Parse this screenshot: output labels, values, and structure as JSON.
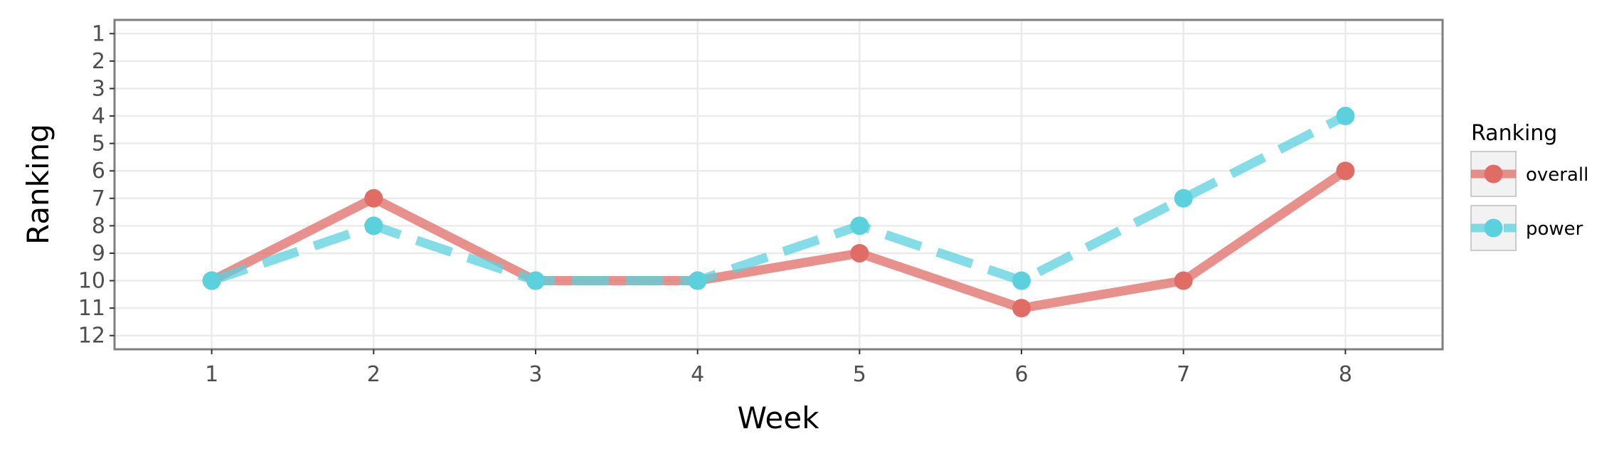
{
  "chart_data": {
    "type": "line",
    "title": "",
    "xlabel": "Week",
    "ylabel": "Ranking",
    "x": [
      1,
      2,
      3,
      4,
      5,
      6,
      7,
      8
    ],
    "x_ticks": [
      "1",
      "2",
      "3",
      "4",
      "5",
      "6",
      "7",
      "8"
    ],
    "y_ticks": [
      "1",
      "2",
      "3",
      "4",
      "5",
      "6",
      "7",
      "8",
      "9",
      "10",
      "11",
      "12"
    ],
    "xlim": [
      0.4,
      8.6
    ],
    "ylim": [
      12.5,
      0.5
    ],
    "y_reversed": true,
    "grid": true,
    "legend": {
      "title": "Ranking",
      "position": "right"
    },
    "series": [
      {
        "name": "overall",
        "values": [
          10,
          7,
          10,
          10,
          9,
          11,
          10,
          6
        ],
        "color": "#e06c66",
        "line_style": "solid"
      },
      {
        "name": "power",
        "values": [
          10,
          8,
          10,
          10,
          8,
          10,
          7,
          4
        ],
        "color": "#5bd1dd",
        "line_style": "dashed"
      }
    ]
  }
}
